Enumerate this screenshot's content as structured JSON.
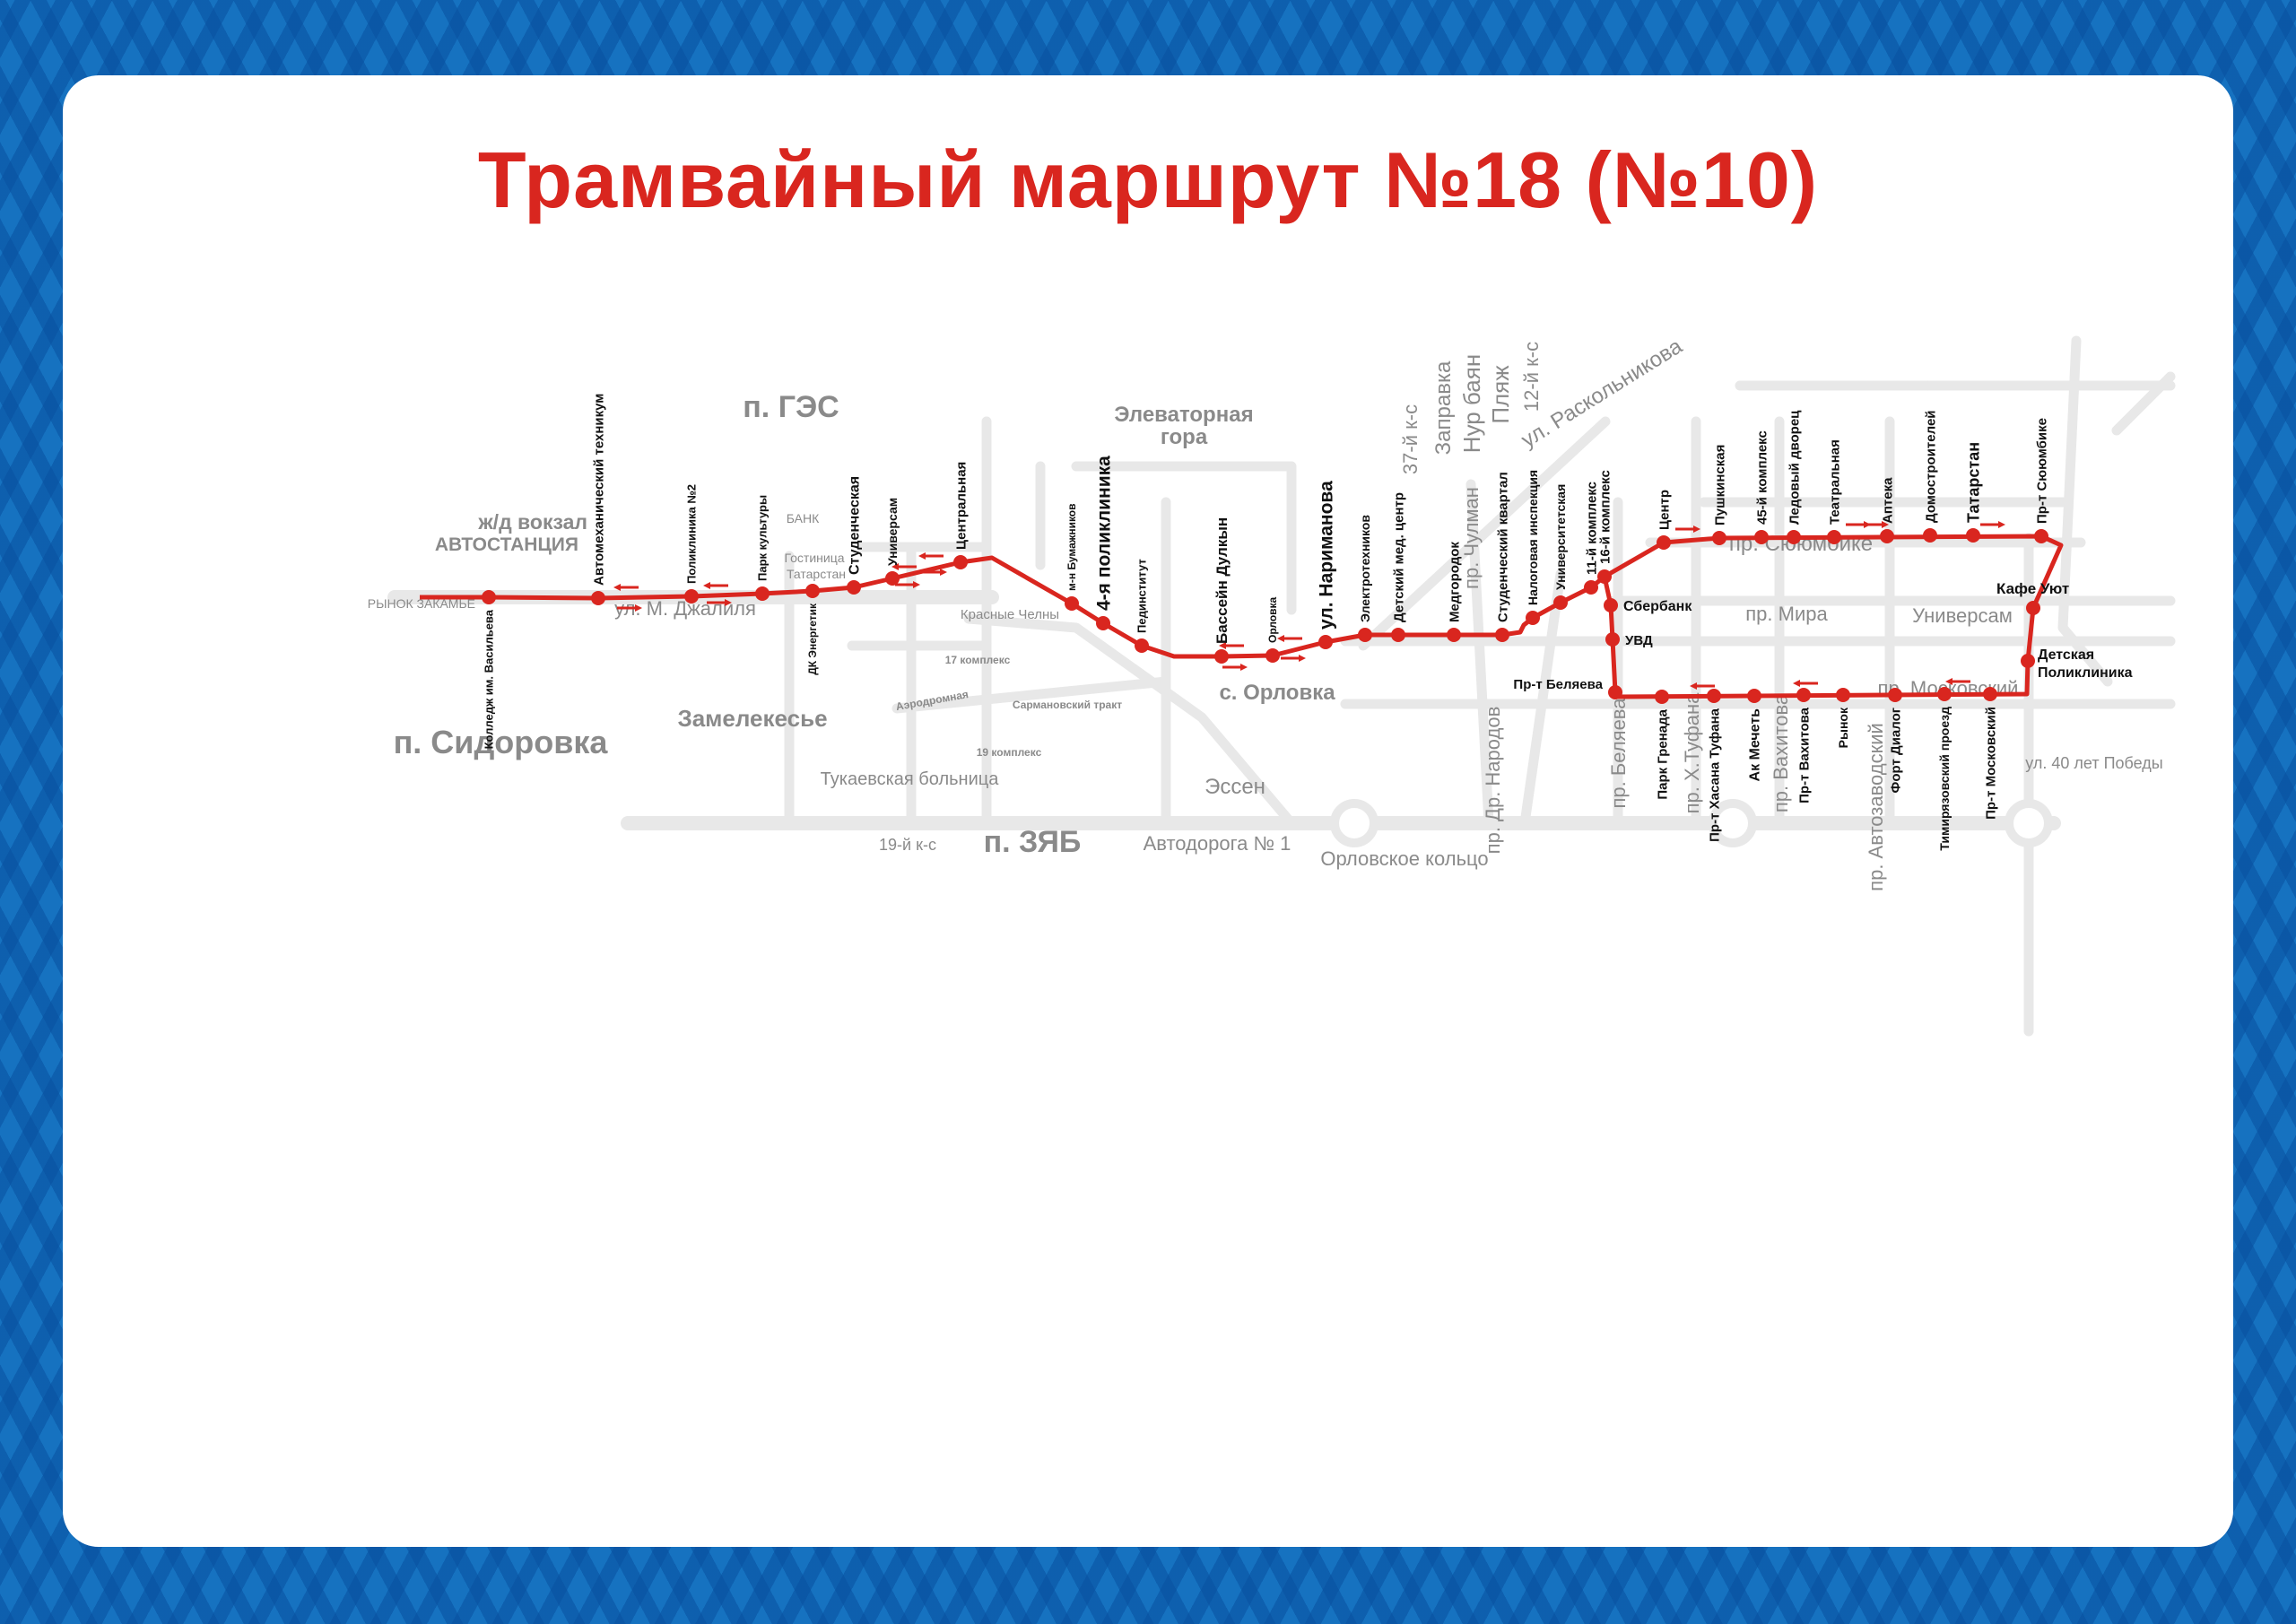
{
  "title": "Трамвайный маршрут №18 (№10)",
  "colors": {
    "route": "#d9261f",
    "title": "#d9261f",
    "border": "#1672c0",
    "roads": "#e8e8e8",
    "place_labels": "#8a8a8a"
  },
  "stops": [
    {
      "name": "Колледж им. Васильева"
    },
    {
      "name": "Автомеханический техникум"
    },
    {
      "name": "Поликлиника №2"
    },
    {
      "name": "Парк культуры"
    },
    {
      "name": "ДК Энергетик"
    },
    {
      "name": "Студенческая"
    },
    {
      "name": "Универсам"
    },
    {
      "name": "Центральная"
    },
    {
      "name": "м-н Бумажников"
    },
    {
      "name": "4-я поликлиника"
    },
    {
      "name": "Пединститут"
    },
    {
      "name": "Бассейн Дулкын"
    },
    {
      "name": "Орловка"
    },
    {
      "name": "ул. Нариманова"
    },
    {
      "name": "Электротехников"
    },
    {
      "name": "Детский мед. центр"
    },
    {
      "name": "Медгородок"
    },
    {
      "name": "Студенческий квартал"
    },
    {
      "name": "Налоговая инспекция"
    },
    {
      "name": "Университетская"
    },
    {
      "name": "11-й комплекс"
    },
    {
      "name": "16-й комплекс"
    },
    {
      "name": "Центр"
    },
    {
      "name": "Пушкинская"
    },
    {
      "name": "45-й комплекс"
    },
    {
      "name": "Ледовый дворец"
    },
    {
      "name": "Театральная"
    },
    {
      "name": "Аптека"
    },
    {
      "name": "Домостроителей"
    },
    {
      "name": "Татарстан"
    },
    {
      "name": "Пр-т Сююмбике"
    },
    {
      "name": "Кафе Уют"
    },
    {
      "name": "Детская"
    },
    {
      "name": "Поликлиника"
    },
    {
      "name": "Пр-т Московский"
    },
    {
      "name": "Тимирязовский проезд"
    },
    {
      "name": "Форт Диалог"
    },
    {
      "name": "Рынок"
    },
    {
      "name": "Пр-т Вахитова"
    },
    {
      "name": "Ак Мечеть"
    },
    {
      "name": "Пр-т Хасана Туфана"
    },
    {
      "name": "Парк Гренада"
    },
    {
      "name": "Пр-т Беляева"
    },
    {
      "name": "УВД"
    },
    {
      "name": "Сбербанк"
    }
  ],
  "places": [
    "п. ГЭС",
    "ж/д вокзал",
    "АВТОСТАНЦИЯ",
    "п. Сидоровка",
    "Замелекесье",
    "п. ЗЯБ",
    "Элеваторная",
    "гора",
    "с. Орловка",
    "Эссен",
    "Автодорога № 1",
    "Орловское кольцо",
    "Тукаевская больница",
    "19-й к-с",
    "ул. М. Джалиля",
    "пр. Сююмбике",
    "пр. Мира",
    "Универсам",
    "пр. Московский",
    "ул. Раскольникова",
    "Нур баян",
    "Пляж",
    "Заправка",
    "12-й к-с",
    "37-й к-с",
    "пр. Беляева",
    "пр. Х.Туфана",
    "пр. Вахитова",
    "пр. Автозаводский",
    "пр. Др. Народов",
    "Красные Челны",
    "17 комплекс",
    "19 комплекс",
    "Аэродромная",
    "Сармановский тракт",
    "РЫНОК ЗАКАМЬЕ",
    "ул. 40 лет Победы",
    "пр. Чулман",
    "БАНК",
    "Гостиница",
    "Татарстан"
  ]
}
